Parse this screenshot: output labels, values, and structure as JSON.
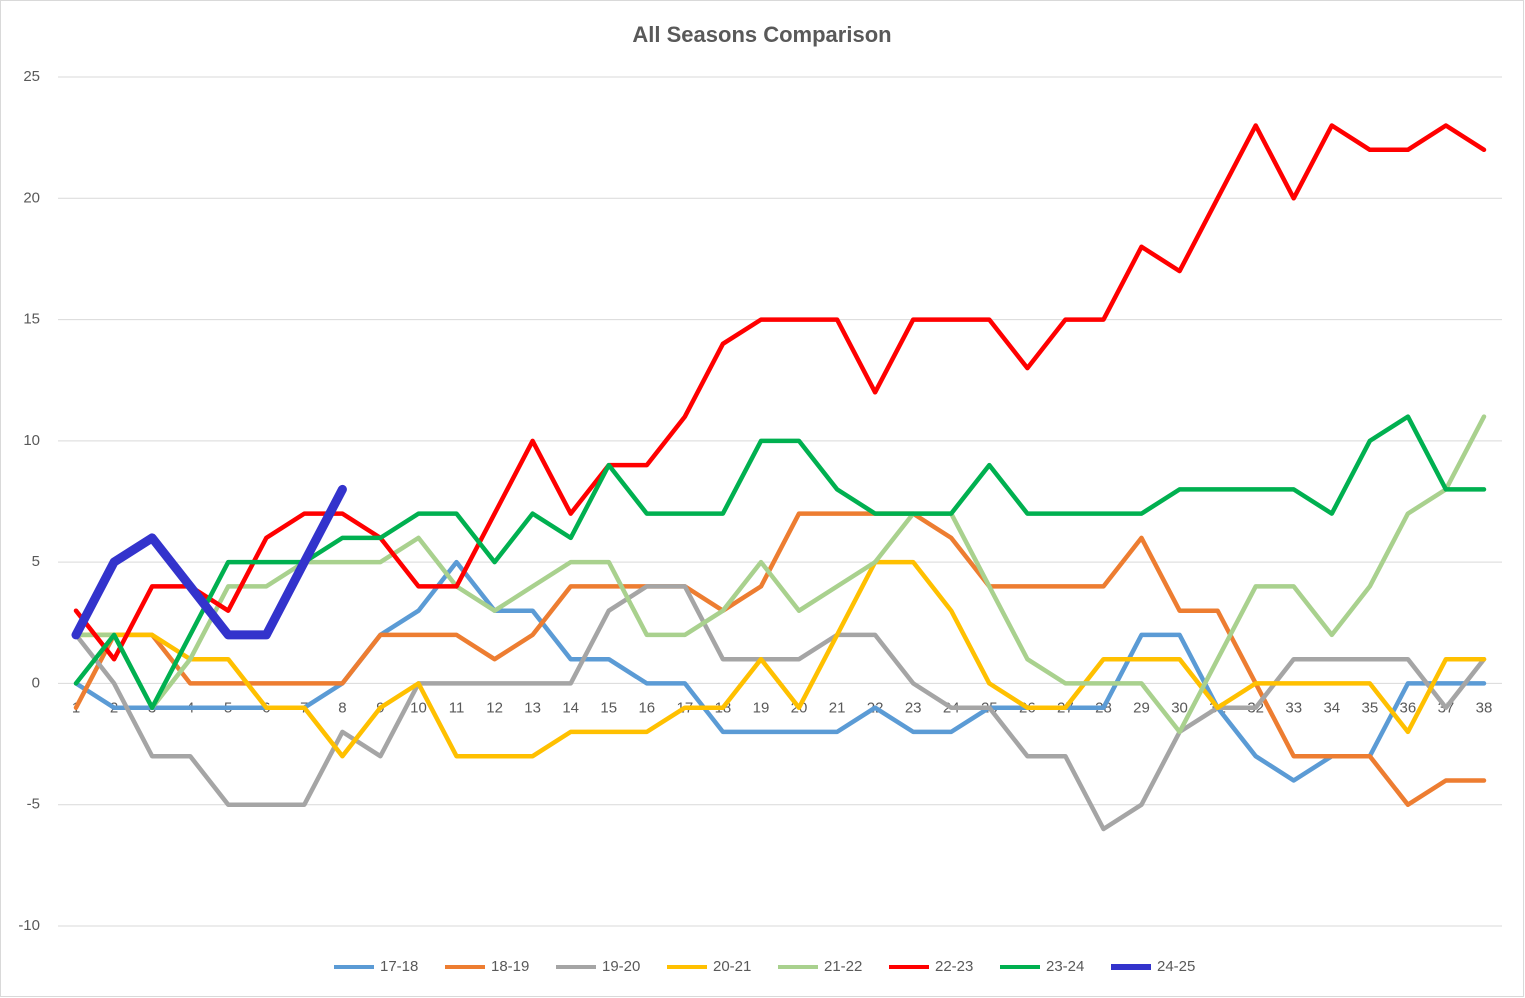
{
  "chart_data": {
    "type": "line",
    "title": "All Seasons Comparison",
    "categories": [
      1,
      2,
      3,
      4,
      5,
      6,
      7,
      8,
      9,
      10,
      11,
      12,
      13,
      14,
      15,
      16,
      17,
      18,
      19,
      20,
      21,
      22,
      23,
      24,
      25,
      26,
      27,
      28,
      29,
      30,
      31,
      32,
      33,
      34,
      35,
      36,
      37,
      38
    ],
    "ylim": [
      -10,
      25
    ],
    "yticks": [
      -10,
      -5,
      0,
      5,
      10,
      15,
      20,
      25
    ],
    "grid": true,
    "legend": "bottom",
    "series": [
      {
        "name": "17-18",
        "color": "#5b9bd5",
        "values": [
          0,
          -1,
          -1,
          -1,
          -1,
          -1,
          -1,
          0,
          2,
          3,
          5,
          3,
          3,
          1,
          1,
          0,
          0,
          -2,
          -2,
          -2,
          -2,
          -1,
          -2,
          -2,
          -1,
          -1,
          -1,
          -1,
          2,
          2,
          -1,
          -3,
          -4,
          -3,
          -3,
          0,
          0,
          0
        ]
      },
      {
        "name": "18-19",
        "color": "#ed7d31",
        "values": [
          -1,
          2,
          2,
          0,
          0,
          0,
          0,
          0,
          2,
          2,
          2,
          1,
          2,
          4,
          4,
          4,
          4,
          3,
          4,
          7,
          7,
          7,
          7,
          6,
          4,
          4,
          4,
          4,
          6,
          3,
          3,
          0,
          -3,
          -3,
          -3,
          -5,
          -4,
          -4
        ]
      },
      {
        "name": "19-20",
        "color": "#a5a5a5",
        "values": [
          2,
          0,
          -3,
          -3,
          -5,
          -5,
          -5,
          -2,
          -3,
          0,
          0,
          0,
          0,
          0,
          3,
          4,
          4,
          1,
          1,
          1,
          2,
          2,
          0,
          -1,
          -1,
          -3,
          -3,
          -6,
          -5,
          -2,
          -1,
          -1,
          1,
          1,
          1,
          1,
          -1,
          1
        ]
      },
      {
        "name": "20-21",
        "color": "#ffc000",
        "values": [
          2,
          2,
          2,
          1,
          1,
          -1,
          -1,
          -3,
          -1,
          0,
          -3,
          -3,
          -3,
          -2,
          -2,
          -2,
          -1,
          -1,
          1,
          -1,
          2,
          5,
          5,
          3,
          0,
          -1,
          -1,
          1,
          1,
          1,
          -1,
          0,
          0,
          0,
          0,
          -2,
          1,
          1
        ]
      },
      {
        "name": "21-22",
        "color": "#a9d18e",
        "values": [
          2,
          2,
          -1,
          1,
          4,
          4,
          5,
          5,
          5,
          6,
          4,
          3,
          4,
          5,
          5,
          2,
          2,
          3,
          5,
          3,
          4,
          5,
          7,
          7,
          4,
          1,
          0,
          0,
          0,
          -2,
          1,
          4,
          4,
          2,
          4,
          7,
          8,
          11
        ]
      },
      {
        "name": "22-23",
        "color": "#ff0000",
        "values": [
          3,
          1,
          4,
          4,
          3,
          6,
          7,
          7,
          6,
          4,
          4,
          7,
          10,
          7,
          9,
          9,
          11,
          14,
          15,
          15,
          15,
          12,
          15,
          15,
          15,
          13,
          15,
          15,
          18,
          17,
          20,
          23,
          20,
          23,
          22,
          22,
          23,
          22
        ]
      },
      {
        "name": "23-24",
        "color": "#00b050",
        "values": [
          0,
          2,
          -1,
          2,
          5,
          5,
          5,
          6,
          6,
          7,
          7,
          5,
          7,
          6,
          9,
          7,
          7,
          7,
          10,
          10,
          8,
          7,
          7,
          7,
          9,
          7,
          7,
          7,
          7,
          8,
          8,
          8,
          8,
          7,
          10,
          11,
          8,
          8
        ]
      },
      {
        "name": "24-25",
        "color": "#3333cc",
        "values": [
          2,
          5,
          6,
          4,
          2,
          2,
          5,
          8,
          null,
          null,
          null,
          null,
          null,
          null,
          null,
          null,
          null,
          null,
          null,
          null,
          null,
          null,
          null,
          null,
          null,
          null,
          null,
          null,
          null,
          null,
          null,
          null,
          null,
          null,
          null,
          null,
          null,
          null
        ]
      }
    ]
  }
}
